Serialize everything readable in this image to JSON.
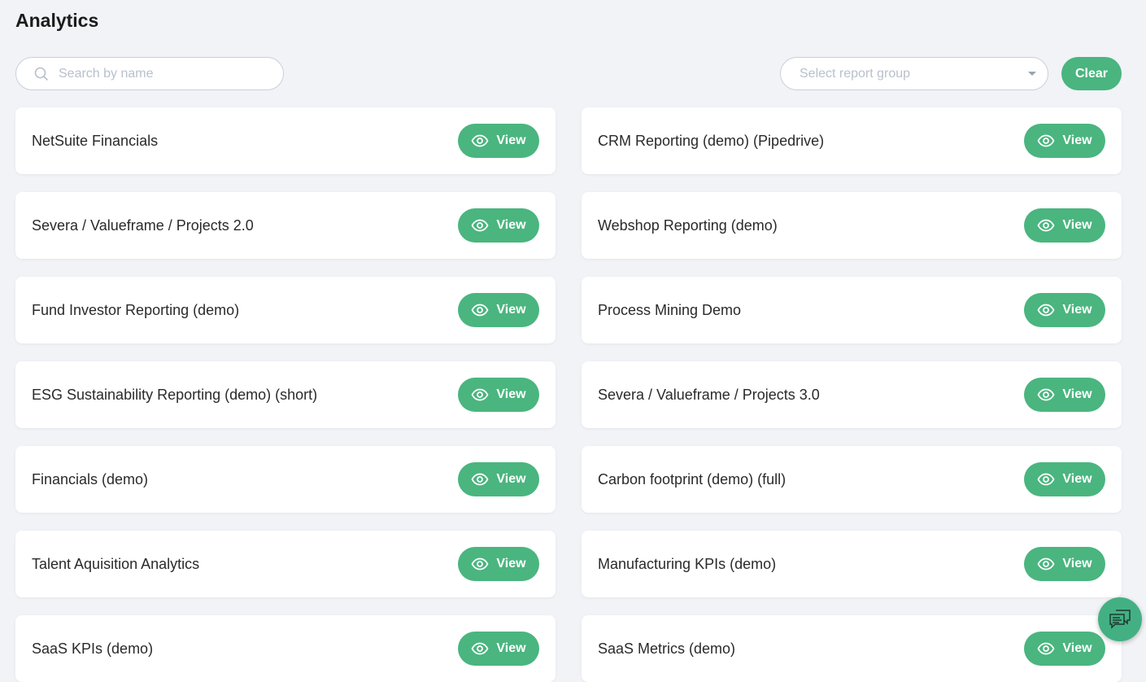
{
  "page": {
    "title": "Analytics"
  },
  "toolbar": {
    "search_placeholder": "Search by name",
    "group_placeholder": "Select report group",
    "clear_label": "Clear"
  },
  "colors": {
    "accent": "#4ab57f",
    "background": "#f1f3f7"
  },
  "view_label": "View",
  "reports": [
    "NetSuite Financials",
    "CRM Reporting (demo) (Pipedrive)",
    "Severa / Valueframe / Projects 2.0",
    "Webshop Reporting (demo)",
    "Fund Investor Reporting (demo)",
    "Process Mining Demo",
    "ESG Sustainability Reporting (demo) (short)",
    "Severa / Valueframe / Projects 3.0",
    "Financials (demo)",
    "Carbon footprint (demo) (full)",
    "Talent Aquisition Analytics",
    "Manufacturing KPIs (demo)",
    "SaaS KPIs (demo)",
    "SaaS Metrics (demo)"
  ]
}
